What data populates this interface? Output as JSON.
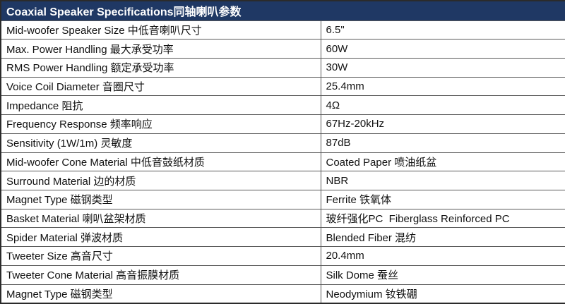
{
  "header": {
    "title": "Coaxial Speaker Specifications同轴喇叭参数"
  },
  "colors": {
    "header_bg": "#1f3864",
    "header_text": "#ffffff",
    "border": "#595959",
    "row_bg": "#ffffff",
    "row_text": "#111111"
  },
  "rows": [
    {
      "label": "Mid-woofer Speaker Size 中低音喇叭尺寸",
      "value": "6.5\""
    },
    {
      "label": "Max. Power Handling 最大承受功率",
      "value": "60W"
    },
    {
      "label": "RMS Power Handling 额定承受功率",
      "value": "30W"
    },
    {
      "label": "Voice Coil Diameter 音圈尺寸",
      "value": "25.4mm"
    },
    {
      "label": "Impedance 阻抗",
      "value": "4Ω"
    },
    {
      "label": "Frequency Response 频率响应",
      "value": "67Hz-20kHz"
    },
    {
      "label": "Sensitivity (1W/1m) 灵敏度",
      "value": "87dB"
    },
    {
      "label": "Mid-woofer Cone Material 中低音鼓纸材质",
      "value": "Coated Paper 喷油纸盆"
    },
    {
      "label": "Surround Material 边的材质",
      "value": "NBR"
    },
    {
      "label": "Magnet Type 磁钢类型",
      "value": "Ferrite 铁氧体"
    },
    {
      "label": "Basket Material 喇叭盆架材质",
      "value": "玻纤强化PC  Fiberglass Reinforced PC"
    },
    {
      "label": "Spider Material 弹波材质",
      "value": "Blended Fiber 混纺"
    },
    {
      "label": "Tweeter Size 高音尺寸",
      "value": "20.4mm"
    },
    {
      "label": "Tweeter Cone Material 高音振膜材质",
      "value": "Silk Dome 蚕丝"
    },
    {
      "label": "Magnet Type 磁钢类型",
      "value": "Neodymium 钕铁硼"
    }
  ]
}
